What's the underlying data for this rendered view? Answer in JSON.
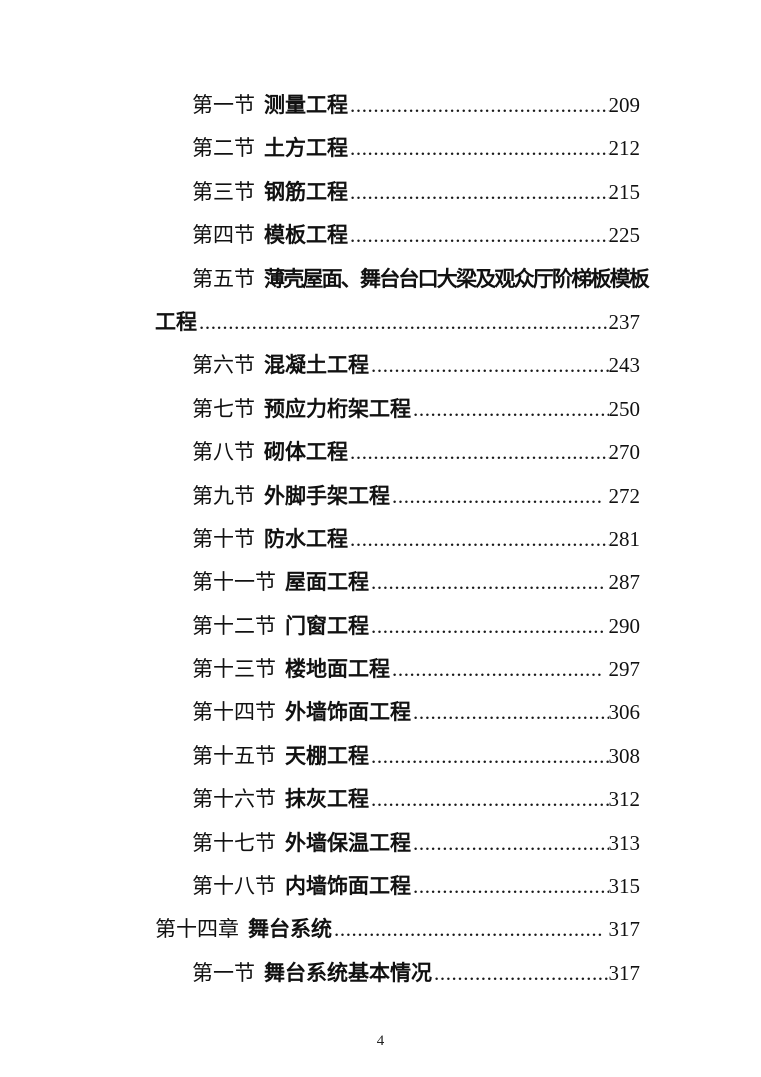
{
  "page": {
    "footer_page_number": "4"
  },
  "toc": {
    "entries": [
      {
        "level": 2,
        "label": "第一节",
        "title": "测量工程",
        "page": "209"
      },
      {
        "level": 2,
        "label": "第二节",
        "title": "土方工程",
        "page": "212"
      },
      {
        "level": 2,
        "label": "第三节",
        "title": "钢筋工程",
        "page": "215"
      },
      {
        "level": 2,
        "label": "第四节",
        "title": "模板工程",
        "page": "225"
      },
      {
        "level": 2,
        "label": "第五节",
        "title": "薄壳屋面、舞台台口大梁及观众厅阶梯板模板",
        "title_cont": "工程",
        "page": "237"
      },
      {
        "level": 2,
        "label": "第六节",
        "title": "混凝土工程",
        "page": "243"
      },
      {
        "level": 2,
        "label": "第七节",
        "title": "预应力桁架工程",
        "page": "250"
      },
      {
        "level": 2,
        "label": "第八节",
        "title": "砌体工程",
        "page": "270"
      },
      {
        "level": 2,
        "label": "第九节",
        "title": "外脚手架工程",
        "page": " 272"
      },
      {
        "level": 2,
        "label": "第十节",
        "title": "防水工程",
        "page": "281"
      },
      {
        "level": 2,
        "label": "第十一节",
        "title": "屋面工程",
        "page": " 287"
      },
      {
        "level": 2,
        "label": "第十二节",
        "title": "门窗工程",
        "page": " 290"
      },
      {
        "level": 2,
        "label": "第十三节",
        "title": "楼地面工程",
        "page": " 297"
      },
      {
        "level": 2,
        "label": "第十四节",
        "title": "外墙饰面工程",
        "page": "306"
      },
      {
        "level": 2,
        "label": "第十五节",
        "title": "天棚工程",
        "page": "308"
      },
      {
        "level": 2,
        "label": "第十六节",
        "title": "抹灰工程",
        "page": "312"
      },
      {
        "level": 2,
        "label": "第十七节",
        "title": "外墙保温工程",
        "page": "313"
      },
      {
        "level": 2,
        "label": "第十八节",
        "title": "内墙饰面工程",
        "page": "315"
      },
      {
        "level": 1,
        "label": "第十四章",
        "title": "舞台系统",
        "page": " 317"
      },
      {
        "level": 2,
        "label": "第一节",
        "title": "舞台系统基本情况",
        "page": "317"
      }
    ]
  }
}
